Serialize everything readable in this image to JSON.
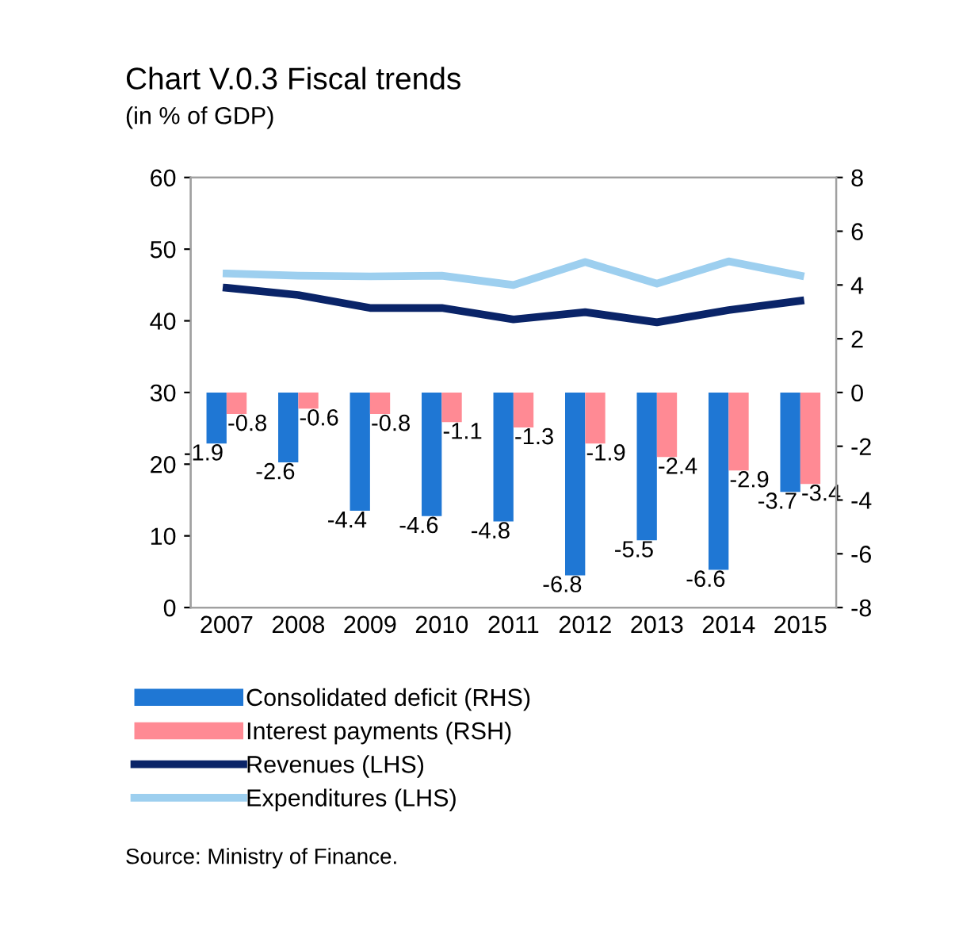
{
  "chart_data": {
    "type": "bar",
    "title": "Chart V.0.3 Fiscal trends",
    "subtitle": "(in % of GDP)",
    "categories": [
      "2007",
      "2008",
      "2009",
      "2010",
      "2011",
      "2012",
      "2013",
      "2014",
      "2015"
    ],
    "series": [
      {
        "name": "Consolidated deficit (RHS)",
        "axis": "y2",
        "color": "#1f77d4",
        "values": [
          -1.9,
          -2.6,
          -4.4,
          -4.6,
          -4.8,
          -6.8,
          -5.5,
          -6.6,
          -3.7
        ],
        "value_labels": [
          "-1.9",
          "-2.6",
          "-4.4",
          "-4.6",
          "-4.8",
          "-6.8",
          "-5.5",
          "-6.6",
          "-3.7"
        ]
      },
      {
        "name": "Interest payments (RSH)",
        "axis": "y2",
        "color": "#ff8a94",
        "values": [
          -0.8,
          -0.6,
          -0.8,
          -1.1,
          -1.3,
          -1.9,
          -2.4,
          -2.9,
          -3.4
        ],
        "value_labels": [
          "-0.8",
          "-0.6",
          "-0.8",
          "-1.1",
          "-1.3",
          "-1.9",
          "-2.4",
          "-2.9",
          "-3.4"
        ]
      },
      {
        "name": "Revenues (LHS)",
        "type": "line",
        "color": "#0a2468",
        "values": [
          44.6,
          43.6,
          41.8,
          41.8,
          40.2,
          41.2,
          39.8,
          41.5,
          42.8
        ]
      },
      {
        "name": "Expenditures (LHS)",
        "type": "line",
        "color": "#9dcfef",
        "values": [
          46.6,
          46.3,
          46.2,
          46.3,
          45.0,
          48.2,
          45.2,
          48.3,
          46.3
        ]
      }
    ],
    "ylim": [
      0,
      60
    ],
    "yticks": [
      0,
      10,
      20,
      30,
      40,
      50,
      60
    ],
    "y2lim": [
      -8,
      8
    ],
    "y2ticks": [
      -8,
      -6,
      -4,
      -2,
      0,
      2,
      4,
      6,
      8
    ],
    "grid": false,
    "legend": "bottom",
    "marker": "none",
    "line_style": "solid",
    "annotations": [
      "Source: Ministry of Finance."
    ]
  }
}
